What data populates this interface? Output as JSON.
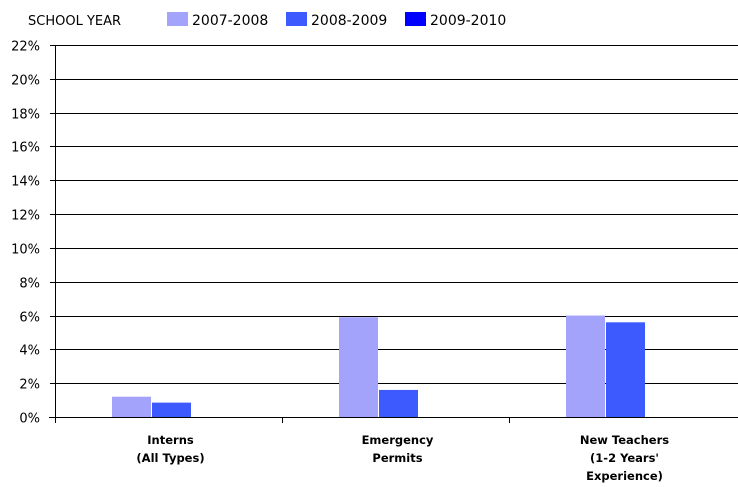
{
  "chart_data": {
    "type": "bar",
    "title": "",
    "xlabel": "",
    "ylabel": "",
    "legend_title": "SCHOOL YEAR",
    "legend_position": "top-left",
    "categories": [
      [
        "Interns",
        "(All Types)"
      ],
      [
        "Emergency",
        "Permits"
      ],
      [
        "New Teachers",
        "(1-2 Years'",
        "Experience)"
      ]
    ],
    "series": [
      {
        "name": "2007-2008",
        "color": "#a3a3fb",
        "values": [
          1.2,
          5.9,
          6.0
        ]
      },
      {
        "name": "2008-2009",
        "color": "#3d5afe",
        "values": [
          0.85,
          1.6,
          5.6
        ]
      },
      {
        "name": "2009-2010",
        "color": "#0000ff",
        "values": [
          0,
          0,
          0
        ]
      }
    ],
    "ylim": [
      0,
      22
    ],
    "yticks": [
      0,
      2,
      4,
      6,
      8,
      10,
      12,
      14,
      16,
      18,
      20,
      22
    ],
    "ytick_suffix": "%",
    "grid": true
  }
}
